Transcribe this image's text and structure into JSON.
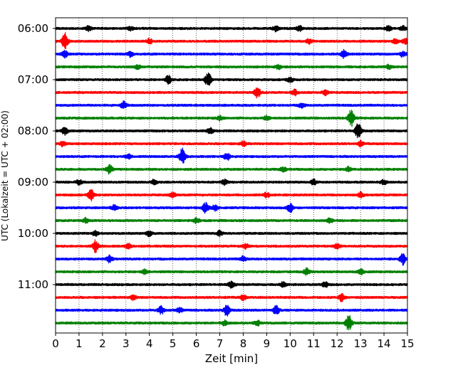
{
  "chart_data": {
    "type": "line",
    "xlabel": "Zeit  [min]",
    "ylabel": "UTC (Lokalzeit = UTC + 02:00)",
    "xlim": [
      0,
      15
    ],
    "x_ticks": [
      "0",
      "1",
      "2",
      "3",
      "4",
      "5",
      "6",
      "7",
      "8",
      "9",
      "10",
      "11",
      "12",
      "13",
      "14",
      "15"
    ],
    "y_tick_labels": [
      "06:00",
      "07:00",
      "08:00",
      "09:00",
      "10:00",
      "11:00"
    ],
    "grid": "vertical dotted lines at each minute",
    "colors": [
      "#000000",
      "#ff0000",
      "#0000ff",
      "#008000"
    ],
    "traces": [
      {
        "start": "06:00",
        "color": "#000000",
        "events": [
          [
            1.4,
            0.3
          ],
          [
            3.2,
            0.25
          ],
          [
            9.4,
            0.35
          ],
          [
            10.4,
            0.3
          ],
          [
            14.2,
            0.3
          ],
          [
            14.8,
            0.3
          ]
        ]
      },
      {
        "start": "06:15",
        "color": "#ff0000",
        "events": [
          [
            0.4,
            1.0
          ],
          [
            4.0,
            0.3
          ],
          [
            10.8,
            0.3
          ],
          [
            14.5,
            0.35
          ],
          [
            14.9,
            0.3
          ]
        ]
      },
      {
        "start": "06:30",
        "color": "#0000ff",
        "events": [
          [
            0.4,
            0.45
          ],
          [
            3.2,
            0.35
          ],
          [
            12.3,
            0.5
          ],
          [
            14.8,
            0.3
          ]
        ]
      },
      {
        "start": "06:45",
        "color": "#008000",
        "events": [
          [
            3.5,
            0.25
          ],
          [
            9.5,
            0.25
          ],
          [
            14.2,
            0.25
          ]
        ]
      },
      {
        "start": "07:00",
        "color": "#000000",
        "events": [
          [
            4.8,
            0.5
          ],
          [
            6.5,
            0.9
          ],
          [
            10.0,
            0.3
          ]
        ]
      },
      {
        "start": "07:15",
        "color": "#ff0000",
        "events": [
          [
            8.6,
            0.7
          ],
          [
            10.2,
            0.35
          ],
          [
            11.5,
            0.3
          ]
        ]
      },
      {
        "start": "07:30",
        "color": "#0000ff",
        "events": [
          [
            2.9,
            0.45
          ],
          [
            10.5,
            0.3
          ]
        ]
      },
      {
        "start": "07:45",
        "color": "#008000",
        "events": [
          [
            12.6,
            1.0
          ],
          [
            7.0,
            0.25
          ],
          [
            9.0,
            0.25
          ]
        ]
      },
      {
        "start": "08:00",
        "color": "#000000",
        "events": [
          [
            0.4,
            0.5
          ],
          [
            6.6,
            0.35
          ],
          [
            12.9,
            1.0
          ]
        ]
      },
      {
        "start": "08:15",
        "color": "#ff0000",
        "events": [
          [
            0.3,
            0.3
          ],
          [
            8.0,
            0.3
          ],
          [
            13.0,
            0.3
          ]
        ]
      },
      {
        "start": "08:30",
        "color": "#0000ff",
        "events": [
          [
            5.4,
            1.0
          ],
          [
            7.3,
            0.45
          ],
          [
            3.1,
            0.3
          ]
        ]
      },
      {
        "start": "08:45",
        "color": "#008000",
        "events": [
          [
            2.3,
            0.6
          ],
          [
            9.7,
            0.3
          ],
          [
            12.5,
            0.3
          ]
        ]
      },
      {
        "start": "09:00",
        "color": "#000000",
        "events": [
          [
            1.0,
            0.3
          ],
          [
            4.2,
            0.3
          ],
          [
            7.2,
            0.3
          ],
          [
            11.0,
            0.3
          ],
          [
            14.0,
            0.3
          ]
        ]
      },
      {
        "start": "09:15",
        "color": "#ff0000",
        "events": [
          [
            1.5,
            0.7
          ],
          [
            5.0,
            0.3
          ],
          [
            9.0,
            0.3
          ],
          [
            13.0,
            0.3
          ]
        ]
      },
      {
        "start": "09:30",
        "color": "#0000ff",
        "events": [
          [
            6.4,
            0.6
          ],
          [
            10.0,
            0.55
          ],
          [
            6.8,
            0.35
          ],
          [
            2.5,
            0.3
          ]
        ]
      },
      {
        "start": "09:45",
        "color": "#008000",
        "events": [
          [
            1.3,
            0.3
          ],
          [
            6.0,
            0.3
          ],
          [
            11.7,
            0.3
          ]
        ]
      },
      {
        "start": "10:00",
        "color": "#000000",
        "events": [
          [
            4.0,
            0.4
          ],
          [
            7.0,
            0.3
          ],
          [
            1.7,
            0.3
          ]
        ]
      },
      {
        "start": "10:15",
        "color": "#ff0000",
        "events": [
          [
            1.7,
            0.7
          ],
          [
            3.1,
            0.3
          ],
          [
            8.1,
            0.3
          ],
          [
            12.0,
            0.3
          ]
        ]
      },
      {
        "start": "10:30",
        "color": "#0000ff",
        "events": [
          [
            2.3,
            0.4
          ],
          [
            8.0,
            0.3
          ],
          [
            14.8,
            0.7
          ]
        ]
      },
      {
        "start": "10:45",
        "color": "#008000",
        "events": [
          [
            3.8,
            0.3
          ],
          [
            10.7,
            0.4
          ],
          [
            13.0,
            0.3
          ]
        ]
      },
      {
        "start": "11:00",
        "color": "#000000",
        "events": [
          [
            7.5,
            0.4
          ],
          [
            9.7,
            0.3
          ],
          [
            11.5,
            0.3
          ]
        ]
      },
      {
        "start": "11:15",
        "color": "#ff0000",
        "events": [
          [
            3.3,
            0.3
          ],
          [
            12.2,
            0.5
          ],
          [
            8.0,
            0.3
          ]
        ]
      },
      {
        "start": "11:30",
        "color": "#0000ff",
        "events": [
          [
            4.5,
            0.5
          ],
          [
            7.3,
            0.7
          ],
          [
            9.4,
            0.6
          ],
          [
            5.3,
            0.3
          ]
        ]
      },
      {
        "start": "11:45",
        "color": "#008000",
        "events": [
          [
            12.5,
            1.0
          ],
          [
            8.6,
            0.3
          ],
          [
            7.2,
            0.3
          ]
        ]
      }
    ]
  }
}
